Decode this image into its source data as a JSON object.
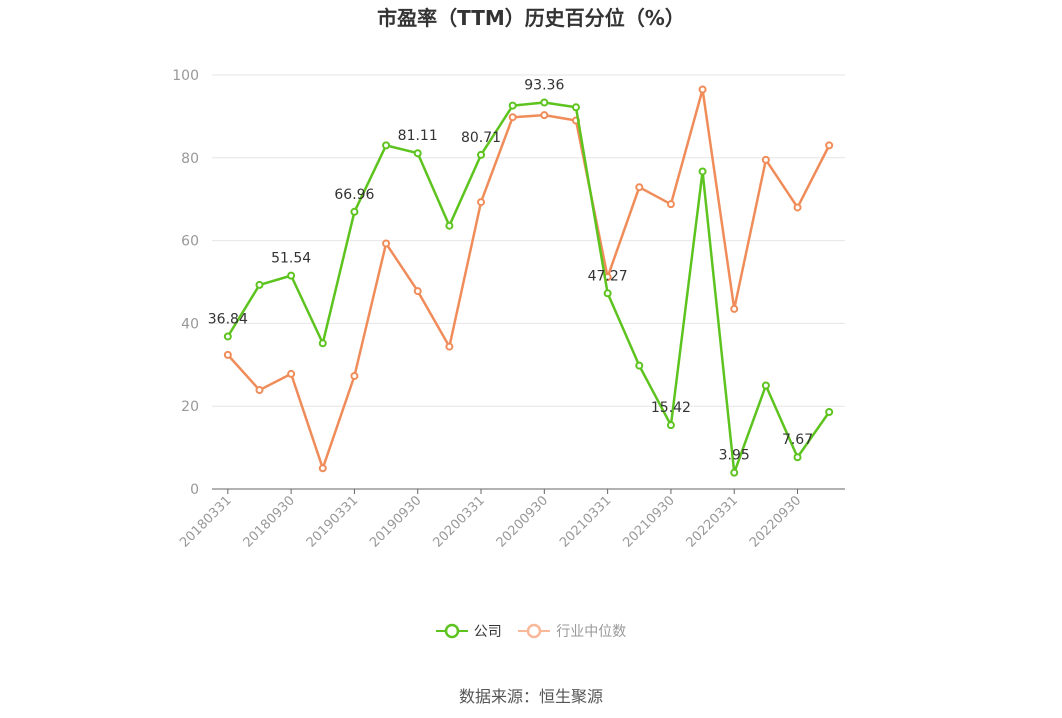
{
  "colors": {
    "company": "#5dc31f",
    "industry": "#f08c5a",
    "industry_legend": "#f9b89a",
    "axis": "#999999",
    "grid": "#e6e6e6",
    "text": "#333333"
  },
  "source": {
    "label": "数据来源：",
    "value": "恒生聚源"
  },
  "chart_data": {
    "type": "line",
    "title": "市盈率（TTM）历史百分位（%）",
    "ylim": [
      0,
      100
    ],
    "yticks": [
      "0",
      "20",
      "40",
      "60",
      "80",
      "100"
    ],
    "grid": true,
    "legend_position": "bottom",
    "x": [
      "20180331",
      "20180630",
      "20180930",
      "20181231",
      "20190331",
      "20190630",
      "20190930",
      "20191231",
      "20200331",
      "20200630",
      "20200930",
      "20201231",
      "20210331",
      "20210630",
      "20210930",
      "20211231",
      "20220331",
      "20220630",
      "20220930",
      "20221231"
    ],
    "xtick_labels": [
      "20180331",
      "20180930",
      "20190331",
      "20190930",
      "20200331",
      "20200930",
      "20210331",
      "20210930",
      "20220331",
      "20220930"
    ],
    "series": [
      {
        "name": "公司",
        "values": [
          36.84,
          49.3,
          51.54,
          35.2,
          66.96,
          83.0,
          81.11,
          63.6,
          80.71,
          92.6,
          93.36,
          92.2,
          47.27,
          29.8,
          15.42,
          76.7,
          3.95,
          25.0,
          7.67,
          18.6
        ],
        "labels": [
          "36.84",
          "",
          "51.54",
          "",
          "66.96",
          "",
          "81.11",
          "",
          "80.71",
          "",
          "93.36",
          "",
          "47.27",
          "",
          "15.42",
          "",
          "3.95",
          "",
          "7.67",
          ""
        ]
      },
      {
        "name": "行业中位数",
        "values": [
          32.4,
          23.9,
          27.8,
          5.0,
          27.3,
          59.3,
          47.8,
          34.4,
          69.3,
          89.8,
          90.3,
          89.0,
          51.2,
          72.9,
          68.8,
          96.5,
          43.5,
          79.5,
          68.0,
          83.0
        ]
      }
    ]
  }
}
